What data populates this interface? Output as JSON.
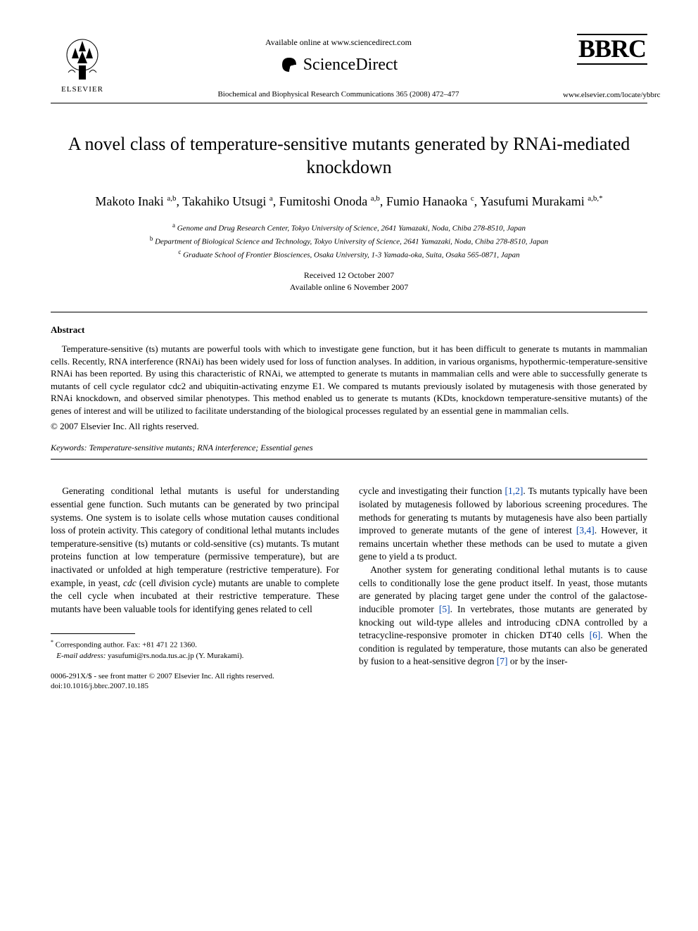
{
  "header": {
    "elsevier": "ELSEVIER",
    "available_online": "Available online at www.sciencedirect.com",
    "sciencedirect": "ScienceDirect",
    "journal_ref": "Biochemical and Biophysical Research Communications 365 (2008) 472–477",
    "bbrc": "BBRC",
    "locate_url": "www.elsevier.com/locate/ybbrc"
  },
  "title": "A novel class of temperature-sensitive mutants generated by RNAi-mediated knockdown",
  "authors_html": "Makoto Inaki <sup>a,b</sup>, Takahiko Utsugi <sup>a</sup>, Fumitoshi Onoda <sup>a,b</sup>, Fumio Hanaoka <sup>c</sup>, Yasufumi Murakami <sup>a,b,*</sup>",
  "affiliations": [
    {
      "sup": "a",
      "text": "Genome and Drug Research Center, Tokyo University of Science, 2641 Yamazaki, Noda, Chiba 278-8510, Japan"
    },
    {
      "sup": "b",
      "text": "Department of Biological Science and Technology, Tokyo University of Science, 2641 Yamazaki, Noda, Chiba 278-8510, Japan"
    },
    {
      "sup": "c",
      "text": "Graduate School of Frontier Biosciences, Osaka University, 1-3 Yamada-oka, Suita, Osaka 565-0871, Japan"
    }
  ],
  "dates": {
    "received": "Received 12 October 2007",
    "online": "Available online 6 November 2007"
  },
  "abstract": {
    "heading": "Abstract",
    "body": "Temperature-sensitive (ts) mutants are powerful tools with which to investigate gene function, but it has been difficult to generate ts mutants in mammalian cells. Recently, RNA interference (RNAi) has been widely used for loss of function analyses. In addition, in various organisms, hypothermic-temperature-sensitive RNAi has been reported. By using this characteristic of RNAi, we attempted to generate ts mutants in mammalian cells and were able to successfully generate ts mutants of cell cycle regulator cdc2 and ubiquitin-activating enzyme E1. We compared ts mutants previously isolated by mutagenesis with those generated by RNAi knockdown, and observed similar phenotypes. This method enabled us to generate ts mutants (KDts, knockdown temperature-sensitive mutants) of the genes of interest and will be utilized to facilitate understanding of the biological processes regulated by an essential gene in mammalian cells.",
    "copyright": "© 2007 Elsevier Inc. All rights reserved."
  },
  "keywords": {
    "label": "Keywords:",
    "text": " Temperature-sensitive mutants; RNA interference; Essential genes"
  },
  "body": {
    "col1": {
      "p1_pre": "Generating conditional lethal mutants is useful for understanding essential gene function. Such mutants can be generated by two principal systems. One system is to isolate cells whose mutation causes conditional loss of protein activity. This category of conditional lethal mutants includes temperature-sensitive (ts) mutants or cold-sensitive (cs) mutants. Ts mutant proteins function at low temperature (permissive temperature), but are inactivated or unfolded at high temperature (restrictive temperature). For example, in yeast, ",
      "p1_ital1": "cdc",
      "p1_mid1": " (",
      "p1_ital2": "c",
      "p1_mid2": "ell ",
      "p1_ital3": "d",
      "p1_mid3": "ivision ",
      "p1_ital4": "c",
      "p1_mid4": "ycle) mutants are unable to complete the cell cycle when incubated at their restrictive temperature. These mutants have been valuable tools for identifying genes related to cell"
    },
    "col2": {
      "p1_pre": "cycle and investigating their function ",
      "ref12": "[1,2]",
      "p1_mid": ". Ts mutants typically have been isolated by mutagenesis followed by laborious screening procedures. The methods for generating ts mutants by mutagenesis have also been partially improved to generate mutants of the gene of interest ",
      "ref34": "[3,4]",
      "p1_post": ". However, it remains uncertain whether these methods can be used to mutate a given gene to yield a ts product.",
      "p2_pre": "Another system for generating conditional lethal mutants is to cause cells to conditionally lose the gene product itself. In yeast, those mutants are generated by placing target gene under the control of the galactose-inducible promoter ",
      "ref5": "[5]",
      "p2_mid1": ". In vertebrates, those mutants are generated by knocking out wild-type alleles and introducing cDNA controlled by a tetracycline-responsive promoter in chicken DT40 cells ",
      "ref6": "[6]",
      "p2_mid2": ". When the condition is regulated by temperature, those mutants can also be generated by fusion to a heat-sensitive degron ",
      "ref7": "[7]",
      "p2_post": " or by the inser-"
    }
  },
  "footnotes": {
    "corr_label": "Corresponding author. Fax: +81 471 22 1360.",
    "email_label": "E-mail address:",
    "email": " yasufumi@rs.noda.tus.ac.jp ",
    "email_paren": "(Y. Murakami)."
  },
  "footer": {
    "issn": "0006-291X/$ - see front matter © 2007 Elsevier Inc. All rights reserved.",
    "doi": "doi:10.1016/j.bbrc.2007.10.185"
  },
  "colors": {
    "text": "#000000",
    "background": "#ffffff",
    "link": "#0645ad"
  }
}
